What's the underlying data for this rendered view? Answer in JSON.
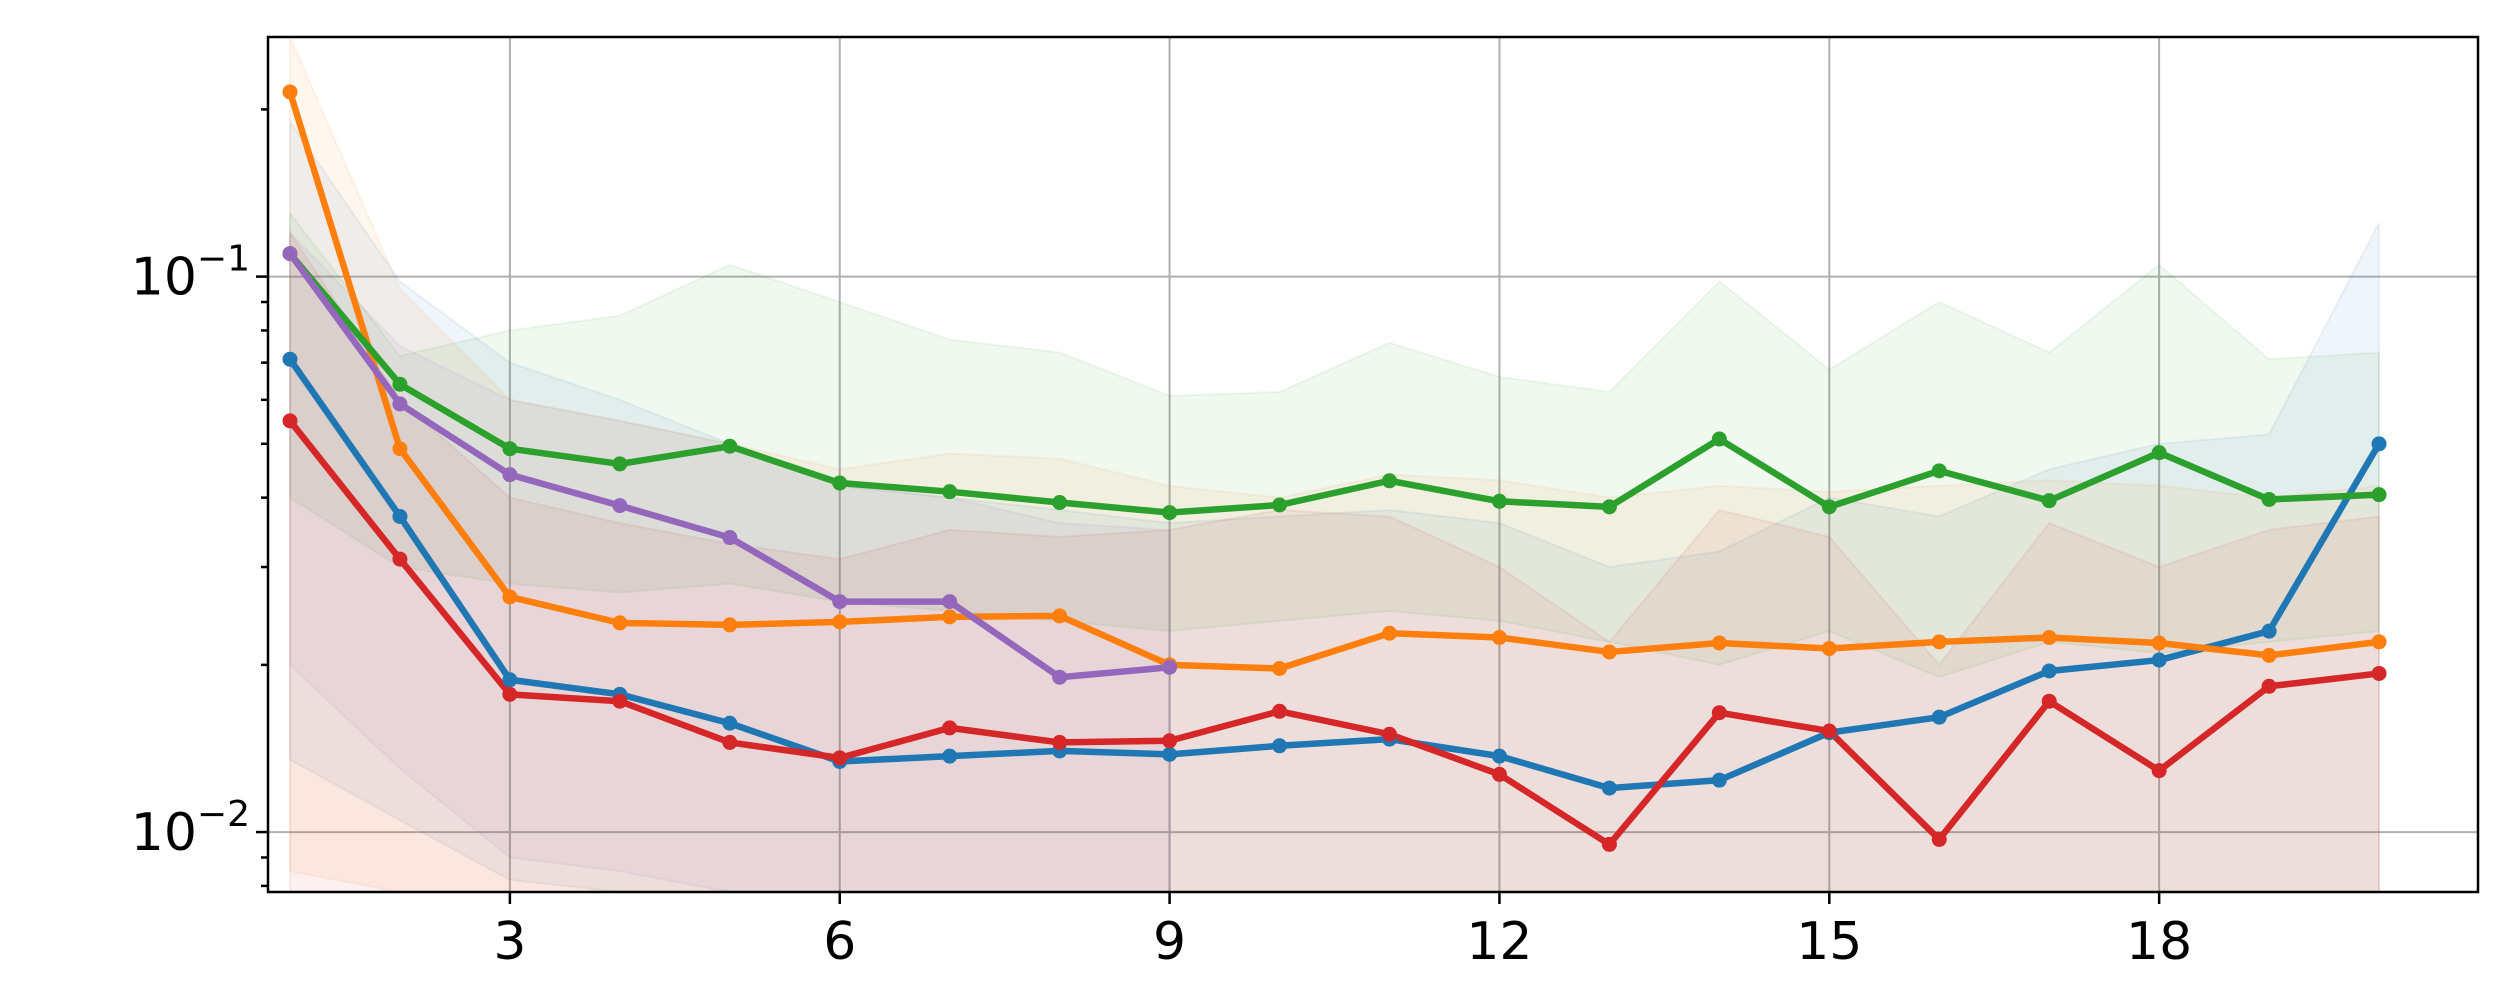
{
  "chart_data": {
    "type": "line",
    "yscale": "log",
    "xlim": [
      0.8,
      20.9
    ],
    "ylim": [
      0.0078,
      0.27
    ],
    "grid": true,
    "x_ticks": [
      3,
      6,
      9,
      12,
      15,
      18
    ],
    "x_tick_labels": [
      "3",
      "6",
      "9",
      "12",
      "15",
      "18"
    ],
    "y_ticks": [
      0.01,
      0.1
    ],
    "y_tick_labels": [
      {
        "base": "10",
        "exp": "−2"
      },
      {
        "base": "10",
        "exp": "−1"
      }
    ],
    "title": "",
    "xlabel": "",
    "ylabel": "",
    "series": [
      {
        "color": "#1f77b4",
        "x": [
          1,
          2,
          3,
          4,
          5,
          6,
          7,
          8,
          9,
          10,
          11,
          12,
          13,
          14,
          15,
          16,
          17,
          18,
          19,
          20
        ],
        "values": [
          0.071,
          0.037,
          0.0188,
          0.0177,
          0.0157,
          0.0134,
          0.0137,
          0.014,
          0.0138,
          0.0143,
          0.0147,
          0.0137,
          0.012,
          0.0124,
          0.0151,
          0.0161,
          0.0195,
          0.0204,
          0.023,
          0.05
        ],
        "band_low": [
          0.0135,
          0.0105,
          0.0082,
          0.0078,
          0.0078,
          0.0078,
          0.0078,
          0.0078,
          0.0078,
          0.0078,
          0.0078,
          0.0078,
          0.0078,
          0.0078,
          0.0078,
          0.0078,
          0.0078,
          0.0078,
          0.0078,
          0.0078
        ],
        "band_high": [
          0.19,
          0.098,
          0.07,
          0.06,
          0.05,
          0.042,
          0.04,
          0.038,
          0.036,
          0.037,
          0.038,
          0.036,
          0.03,
          0.032,
          0.04,
          0.037,
          0.045,
          0.05,
          0.052,
          0.125
        ]
      },
      {
        "color": "#ff7f0e",
        "x": [
          1,
          2,
          3,
          4,
          5,
          6,
          7,
          8,
          9,
          10,
          11,
          12,
          13,
          14,
          15,
          16,
          17,
          18,
          19,
          20
        ],
        "values": [
          0.215,
          0.049,
          0.0265,
          0.0238,
          0.0236,
          0.0239,
          0.0244,
          0.0245,
          0.02,
          0.0197,
          0.0228,
          0.0224,
          0.0211,
          0.0219,
          0.0214,
          0.022,
          0.0224,
          0.0219,
          0.0208,
          0.022
        ],
        "band_low": [
          0.0085,
          0.0078,
          0.0078,
          0.0078,
          0.0078,
          0.0078,
          0.0078,
          0.0078,
          0.0078,
          0.0078,
          0.0078,
          0.0078,
          0.0078,
          0.0078,
          0.0078,
          0.0078,
          0.0078,
          0.0078,
          0.0078,
          0.0078
        ],
        "band_high": [
          0.27,
          0.095,
          0.06,
          0.055,
          0.05,
          0.045,
          0.048,
          0.047,
          0.042,
          0.04,
          0.044,
          0.043,
          0.04,
          0.042,
          0.041,
          0.042,
          0.043,
          0.042,
          0.04,
          0.042
        ]
      },
      {
        "color": "#2ca02c",
        "x": [
          1,
          2,
          3,
          4,
          5,
          6,
          7,
          8,
          9,
          10,
          11,
          12,
          13,
          14,
          15,
          16,
          17,
          18,
          19,
          20
        ],
        "values": [
          0.11,
          0.064,
          0.049,
          0.046,
          0.0495,
          0.0425,
          0.041,
          0.0392,
          0.0376,
          0.0388,
          0.0429,
          0.0394,
          0.0385,
          0.051,
          0.0385,
          0.0447,
          0.0395,
          0.0482,
          0.0397,
          0.0405
        ],
        "band_low": [
          0.04,
          0.03,
          0.028,
          0.027,
          0.028,
          0.026,
          0.025,
          0.024,
          0.023,
          0.024,
          0.025,
          0.024,
          0.022,
          0.02,
          0.023,
          0.019,
          0.022,
          0.021,
          0.022,
          0.023
        ],
        "band_high": [
          0.13,
          0.072,
          0.08,
          0.085,
          0.105,
          0.09,
          0.077,
          0.073,
          0.061,
          0.062,
          0.076,
          0.066,
          0.062,
          0.098,
          0.068,
          0.09,
          0.073,
          0.105,
          0.071,
          0.073
        ]
      },
      {
        "color": "#d62728",
        "x": [
          1,
          2,
          3,
          4,
          5,
          6,
          7,
          8,
          9,
          10,
          11,
          12,
          13,
          14,
          15,
          16,
          17,
          18,
          19,
          20
        ],
        "values": [
          0.055,
          0.031,
          0.0177,
          0.0172,
          0.0145,
          0.0136,
          0.0154,
          0.0145,
          0.0146,
          0.0165,
          0.015,
          0.0127,
          0.0095,
          0.0164,
          0.0152,
          0.0097,
          0.0172,
          0.0129,
          0.0183,
          0.0193
        ],
        "band_low": [
          0.0078,
          0.0078,
          0.0078,
          0.0078,
          0.0078,
          0.0078,
          0.0078,
          0.0078,
          0.0078,
          0.0078,
          0.0078,
          0.0078,
          0.0078,
          0.0078,
          0.0078,
          0.0078,
          0.0078,
          0.0078,
          0.0078,
          0.0078
        ],
        "band_high": [
          0.12,
          0.06,
          0.04,
          0.036,
          0.033,
          0.031,
          0.035,
          0.034,
          0.035,
          0.038,
          0.037,
          0.03,
          0.022,
          0.038,
          0.034,
          0.02,
          0.036,
          0.03,
          0.035,
          0.037
        ]
      },
      {
        "color": "#9467bd",
        "x": [
          1,
          2,
          3,
          4,
          5,
          6,
          7,
          8,
          9
        ],
        "values": [
          0.11,
          0.059,
          0.044,
          0.0387,
          0.0339,
          0.026,
          0.026,
          0.019,
          0.0198
        ],
        "band_low": [
          0.02,
          0.013,
          0.009,
          0.0085,
          0.0078,
          0.0078,
          0.0078,
          0.0078,
          0.0078
        ],
        "band_high": [
          0.12,
          0.075,
          0.06,
          0.055,
          0.05,
          0.042,
          0.04,
          0.036,
          0.035
        ]
      }
    ]
  }
}
